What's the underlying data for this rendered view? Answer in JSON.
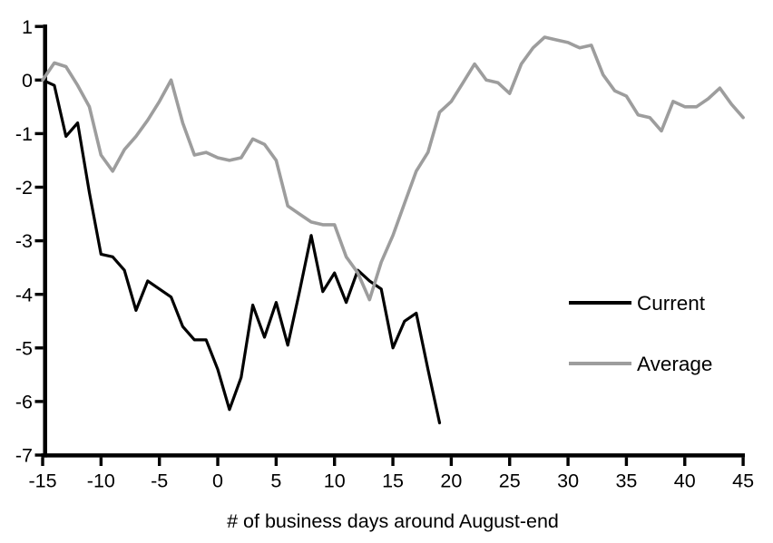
{
  "page": {
    "background": "#ffffff",
    "axis_color": "#000000"
  },
  "chart_data": {
    "type": "line",
    "title": "",
    "xlabel": "# of business days around August-end",
    "ylabel": "",
    "xlim": [
      -15,
      45
    ],
    "ylim": [
      -7,
      1
    ],
    "x_ticks": [
      -15,
      -10,
      -5,
      0,
      5,
      10,
      15,
      20,
      25,
      30,
      35,
      40,
      45
    ],
    "y_ticks": [
      1,
      0,
      -1,
      -2,
      -3,
      -4,
      -5,
      -6,
      -7
    ],
    "grid": false,
    "legend_position": "middle-right",
    "x_step": 1,
    "series": [
      {
        "name": "Current",
        "color": "#000000",
        "stroke_width": 3.2,
        "x_start": -15,
        "values": [
          0,
          -0.1,
          -1.05,
          -0.8,
          -2.1,
          -3.25,
          -3.3,
          -3.55,
          -4.3,
          -3.75,
          -3.9,
          -4.05,
          -4.6,
          -4.85,
          -4.85,
          -5.4,
          -6.15,
          -5.55,
          -4.2,
          -4.8,
          -4.15,
          -4.95,
          -3.95,
          -2.9,
          -3.95,
          -3.6,
          -4.15,
          -3.55,
          -3.75,
          -3.9,
          -5.0,
          -4.5,
          -4.35,
          -5.4,
          -6.4
        ]
      },
      {
        "name": "Average",
        "color": "#9d9d9d",
        "stroke_width": 3.6,
        "x_start": -15,
        "values": [
          0,
          0.32,
          0.25,
          -0.1,
          -0.5,
          -1.4,
          -1.7,
          -1.3,
          -1.05,
          -0.75,
          -0.4,
          0,
          -0.8,
          -1.4,
          -1.35,
          -1.45,
          -1.5,
          -1.45,
          -1.1,
          -1.2,
          -1.5,
          -2.35,
          -2.5,
          -2.65,
          -2.7,
          -2.7,
          -3.3,
          -3.6,
          -4.1,
          -3.4,
          -2.9,
          -2.3,
          -1.7,
          -1.35,
          -0.6,
          -0.4,
          -0.05,
          0.3,
          0,
          -0.05,
          -0.25,
          0.3,
          0.6,
          0.8,
          0.75,
          0.7,
          0.6,
          0.65,
          0.1,
          -0.2,
          -0.3,
          -0.65,
          -0.7,
          -0.95,
          -0.4,
          -0.5,
          -0.5,
          -0.35,
          -0.15,
          -0.45,
          -0.7
        ]
      }
    ]
  }
}
